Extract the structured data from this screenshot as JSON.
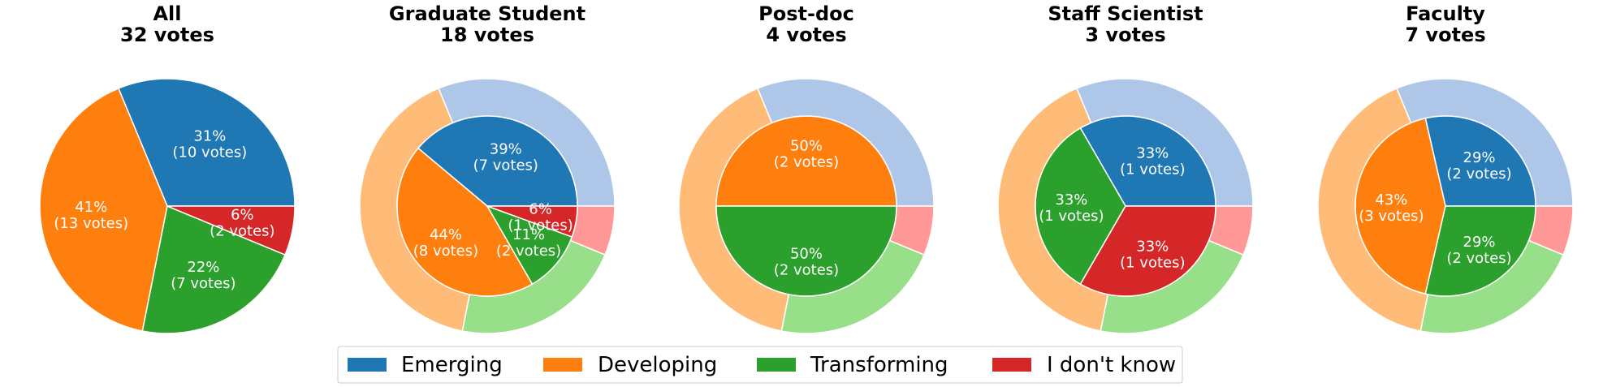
{
  "categories": [
    "Emerging",
    "Developing",
    "Transforming",
    "I don't know"
  ],
  "colors": {
    "inner": [
      "#1f77b4",
      "#ff7f0e",
      "#2ca02c",
      "#d62728"
    ],
    "outer": [
      "#aec7e8",
      "#ffbb78",
      "#98df8a",
      "#ff9896"
    ]
  },
  "legend": {
    "placement": "lower-center",
    "columns": 4
  },
  "chart_data": [
    {
      "type": "pie",
      "title": "All",
      "subtitle": "32 votes",
      "categories": [
        "Emerging",
        "Developing",
        "Transforming",
        "I don't know"
      ],
      "values": [
        10,
        13,
        7,
        2
      ],
      "labels": [
        "31%",
        "41%",
        "22%",
        "6%"
      ],
      "vote_labels": [
        "(10 votes)",
        "(13 votes)",
        "(7 votes)",
        "(2 votes)"
      ]
    },
    {
      "type": "pie",
      "title": "Graduate Student",
      "subtitle": "18 votes",
      "categories": [
        "Emerging",
        "Developing",
        "Transforming",
        "I don't know"
      ],
      "values": [
        7,
        8,
        2,
        1
      ],
      "labels": [
        "39%",
        "44%",
        "11%",
        "6%"
      ],
      "vote_labels": [
        "(7 votes)",
        "(8 votes)",
        "(2 votes)",
        "(1 votes)"
      ],
      "outer_ring_values": [
        10,
        13,
        7,
        2
      ]
    },
    {
      "type": "pie",
      "title": "Post-doc",
      "subtitle": "4 votes",
      "categories": [
        "Emerging",
        "Developing",
        "Transforming",
        "I don't know"
      ],
      "values": [
        0,
        2,
        2,
        0
      ],
      "labels": [
        "",
        "50%",
        "50%",
        ""
      ],
      "vote_labels": [
        "",
        "(2 votes)",
        "(2 votes)",
        ""
      ],
      "outer_ring_values": [
        10,
        13,
        7,
        2
      ]
    },
    {
      "type": "pie",
      "title": "Staff Scientist",
      "subtitle": "3 votes",
      "categories": [
        "Emerging",
        "Developing",
        "Transforming",
        "I don't know"
      ],
      "values": [
        1,
        0,
        1,
        1
      ],
      "labels": [
        "33%",
        "",
        "33%",
        "33%"
      ],
      "vote_labels": [
        "(1 votes)",
        "",
        "(1 votes)",
        "(1 votes)"
      ],
      "outer_ring_values": [
        10,
        13,
        7,
        2
      ]
    },
    {
      "type": "pie",
      "title": "Faculty",
      "subtitle": "7 votes",
      "categories": [
        "Emerging",
        "Developing",
        "Transforming",
        "I don't know"
      ],
      "values": [
        2,
        3,
        2,
        0
      ],
      "labels": [
        "29%",
        "43%",
        "29%",
        ""
      ],
      "vote_labels": [
        "(2 votes)",
        "(3 votes)",
        "(2 votes)",
        ""
      ],
      "outer_ring_values": [
        10,
        13,
        7,
        2
      ]
    }
  ]
}
